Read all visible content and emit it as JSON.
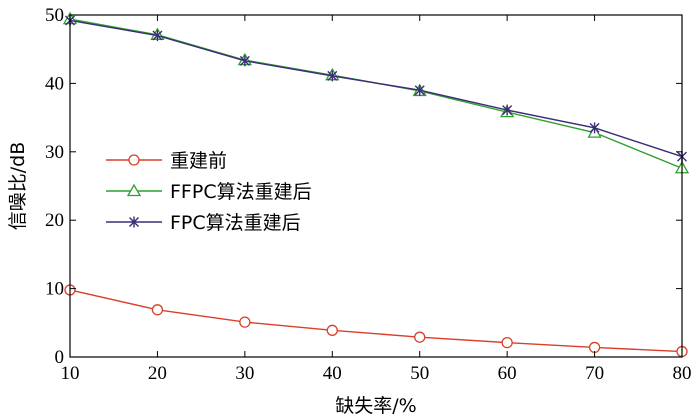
{
  "chart_data": {
    "type": "line",
    "xlabel": "缺失率/%",
    "ylabel": "信噪比/dB",
    "xlim": [
      10,
      80
    ],
    "ylim": [
      0,
      50
    ],
    "xticks": [
      10,
      20,
      30,
      40,
      50,
      60,
      70,
      80
    ],
    "yticks": [
      0,
      10,
      20,
      30,
      40,
      50
    ],
    "grid": false,
    "legend_position": "center-left",
    "x": [
      10,
      20,
      30,
      40,
      50,
      60,
      70,
      80
    ],
    "series": [
      {
        "name": "重建前",
        "marker": "circle",
        "color": "#d9402b",
        "values": [
          9.8,
          6.9,
          5.1,
          3.9,
          2.9,
          2.1,
          1.4,
          0.8
        ]
      },
      {
        "name": "FFPC算法重建后",
        "marker": "triangle",
        "color": "#2ca02c",
        "values": [
          49.4,
          47.1,
          43.4,
          41.2,
          38.9,
          35.8,
          32.8,
          27.6
        ]
      },
      {
        "name": "FPC算法重建后",
        "marker": "star",
        "color": "#3b2d7a",
        "values": [
          49.2,
          47.0,
          43.3,
          41.1,
          39.0,
          36.1,
          33.5,
          29.3
        ]
      }
    ]
  }
}
